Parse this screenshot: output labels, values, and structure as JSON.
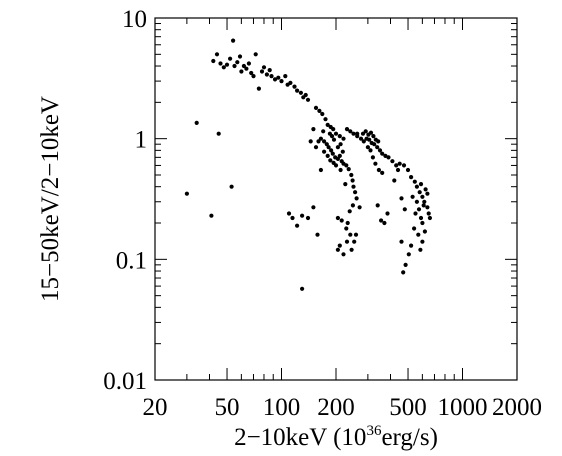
{
  "chart_data": {
    "type": "scatter",
    "title": "",
    "xlabel_parts": {
      "pre": "2−10keV (10",
      "sup": "36",
      "post": "erg/s)"
    },
    "ylabel": "15−50keV/2−10keV",
    "x_scale": "log",
    "y_scale": "log",
    "xlim": [
      20,
      2000
    ],
    "ylim": [
      0.01,
      10
    ],
    "x_ticks": [
      20,
      50,
      100,
      200,
      500,
      1000,
      2000
    ],
    "x_tick_labels": [
      "20",
      "50",
      "100",
      "200",
      "500",
      "1000",
      "2000"
    ],
    "y_ticks": [
      0.01,
      0.1,
      1,
      10
    ],
    "y_tick_labels": [
      "0.01",
      "0.1",
      "1",
      "10"
    ],
    "grid": false,
    "legend": "none",
    "marker_color": "#000000",
    "series": [
      {
        "points": [
          [
            42,
            4.4
          ],
          [
            44,
            5.0
          ],
          [
            46,
            4.2
          ],
          [
            48,
            3.9
          ],
          [
            50,
            4.1
          ],
          [
            52,
            4.6
          ],
          [
            54,
            6.5
          ],
          [
            55,
            4.0
          ],
          [
            57,
            4.3
          ],
          [
            59,
            4.8
          ],
          [
            60,
            3.6
          ],
          [
            62,
            4.0
          ],
          [
            64,
            3.8
          ],
          [
            66,
            4.2
          ],
          [
            68,
            3.5
          ],
          [
            70,
            3.3
          ],
          [
            72,
            5.0
          ],
          [
            75,
            2.6
          ],
          [
            78,
            3.6
          ],
          [
            80,
            3.9
          ],
          [
            83,
            3.4
          ],
          [
            86,
            3.7
          ],
          [
            88,
            3.3
          ],
          [
            92,
            3.1
          ],
          [
            96,
            3.2
          ],
          [
            100,
            3.0
          ],
          [
            105,
            3.3
          ],
          [
            108,
            2.8
          ],
          [
            112,
            2.9
          ],
          [
            118,
            2.7
          ],
          [
            122,
            2.5
          ],
          [
            128,
            2.4
          ],
          [
            132,
            2.2
          ],
          [
            136,
            2.3
          ],
          [
            140,
            2.1
          ],
          [
            155,
            1.8
          ],
          [
            162,
            1.7
          ],
          [
            168,
            1.6
          ],
          [
            175,
            1.45
          ],
          [
            180,
            1.3
          ],
          [
            187,
            1.25
          ],
          [
            193,
            1.2
          ],
          [
            200,
            1.1
          ],
          [
            210,
            1.05
          ],
          [
            220,
            1.0
          ],
          [
            230,
            1.2
          ],
          [
            240,
            1.15
          ],
          [
            250,
            1.1
          ],
          [
            262,
            1.05
          ],
          [
            275,
            1.0
          ],
          [
            285,
            0.95
          ],
          [
            295,
            1.0
          ],
          [
            305,
            0.98
          ],
          [
            315,
            0.92
          ],
          [
            325,
            0.9
          ],
          [
            338,
            0.85
          ],
          [
            350,
            0.8
          ],
          [
            360,
            0.75
          ],
          [
            375,
            0.72
          ],
          [
            390,
            0.7
          ],
          [
            410,
            0.65
          ],
          [
            430,
            0.6
          ],
          [
            450,
            0.62
          ],
          [
            475,
            0.6
          ],
          [
            500,
            0.55
          ],
          [
            520,
            0.48
          ],
          [
            545,
            0.44
          ],
          [
            560,
            0.4
          ],
          [
            580,
            0.36
          ],
          [
            600,
            0.33
          ],
          [
            615,
            0.3
          ],
          [
            640,
            0.27
          ],
          [
            650,
            0.24
          ],
          [
            660,
            0.22
          ],
          [
            560,
            0.3
          ],
          [
            575,
            0.26
          ],
          [
            590,
            0.22
          ],
          [
            600,
            0.2
          ],
          [
            620,
            0.17
          ],
          [
            600,
            0.14
          ],
          [
            585,
            0.12
          ],
          [
            570,
            0.16
          ],
          [
            550,
            0.24
          ],
          [
            530,
            0.33
          ],
          [
            520,
            0.13
          ],
          [
            505,
            0.11
          ],
          [
            485,
            0.09
          ],
          [
            470,
            0.078
          ],
          [
            460,
            0.14
          ],
          [
            540,
            0.18
          ],
          [
            640,
            0.35
          ],
          [
            625,
            0.38
          ],
          [
            610,
            0.28
          ],
          [
            590,
            0.42
          ],
          [
            165,
            1.0
          ],
          [
            172,
            0.95
          ],
          [
            178,
            0.9
          ],
          [
            182,
            0.85
          ],
          [
            188,
            0.8
          ],
          [
            192,
            0.75
          ],
          [
            198,
            0.7
          ],
          [
            205,
            0.68
          ],
          [
            210,
            0.72
          ],
          [
            215,
            0.65
          ],
          [
            220,
            0.62
          ],
          [
            228,
            0.6
          ],
          [
            235,
            0.56
          ],
          [
            185,
            1.1
          ],
          [
            190,
            1.05
          ],
          [
            195,
            0.98
          ],
          [
            172,
            0.78
          ],
          [
            180,
            0.72
          ],
          [
            186,
            0.66
          ],
          [
            194,
            0.63
          ],
          [
            205,
            0.85
          ],
          [
            212,
            0.9
          ],
          [
            218,
            0.78
          ],
          [
            200,
            0.6
          ],
          [
            243,
            0.5
          ],
          [
            247,
            0.45
          ],
          [
            250,
            0.4
          ],
          [
            225,
            0.42
          ],
          [
            212,
            0.55
          ],
          [
            165,
            0.55
          ],
          [
            160,
            0.95
          ],
          [
            170,
            1.15
          ],
          [
            255,
            0.36
          ],
          [
            260,
            0.32
          ],
          [
            248,
            0.28
          ],
          [
            238,
            0.25
          ],
          [
            232,
            0.2
          ],
          [
            228,
            0.18
          ],
          [
            240,
            0.16
          ],
          [
            252,
            0.14
          ],
          [
            258,
            0.16
          ],
          [
            244,
            0.12
          ],
          [
            230,
            0.14
          ],
          [
            220,
            0.11
          ],
          [
            210,
            0.13
          ],
          [
            205,
            0.12
          ],
          [
            205,
            0.22
          ],
          [
            215,
            0.21
          ],
          [
            270,
            0.27
          ],
          [
            300,
            0.85
          ],
          [
            310,
            0.8
          ],
          [
            320,
            0.7
          ],
          [
            330,
            0.62
          ],
          [
            345,
            0.55
          ],
          [
            360,
            0.52
          ],
          [
            340,
            0.28
          ],
          [
            355,
            0.21
          ],
          [
            370,
            0.2
          ],
          [
            385,
            0.24
          ],
          [
            420,
            0.45
          ],
          [
            440,
            0.55
          ],
          [
            460,
            0.32
          ],
          [
            480,
            0.26
          ],
          [
            282,
            1.1
          ],
          [
            292,
            1.15
          ],
          [
            302,
            1.08
          ],
          [
            312,
            1.12
          ],
          [
            322,
            1.05
          ],
          [
            332,
            0.98
          ],
          [
            342,
            0.95
          ],
          [
            262,
            1.1
          ],
          [
            150,
            1.2
          ],
          [
            145,
            0.95
          ],
          [
            155,
            0.85
          ],
          [
            110,
            0.24
          ],
          [
            115,
            0.22
          ],
          [
            122,
            0.19
          ],
          [
            130,
            0.23
          ],
          [
            140,
            0.22
          ],
          [
            150,
            0.27
          ],
          [
            158,
            0.16
          ],
          [
            30,
            0.35
          ],
          [
            34,
            1.35
          ],
          [
            41,
            0.23
          ],
          [
            45,
            1.1
          ],
          [
            53,
            0.4
          ],
          [
            130,
            0.057
          ]
        ]
      }
    ]
  }
}
